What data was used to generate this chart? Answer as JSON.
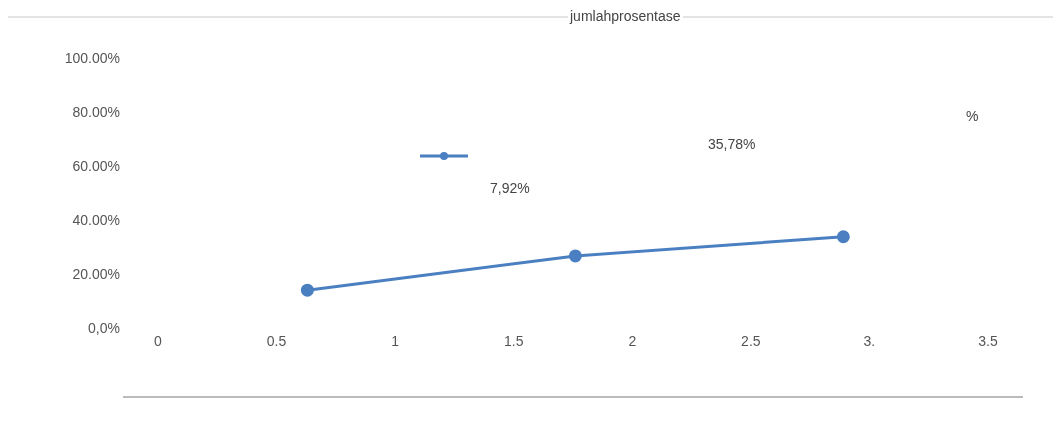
{
  "chart_data": {
    "type": "line",
    "title": "jumlahprosentase",
    "x": [
      0.63,
      1.76,
      2.89
    ],
    "series": [
      {
        "color": "#4a7fc1",
        "values": [
          14,
          26.7,
          33.8
        ]
      }
    ],
    "xlim": [
      0,
      3.5
    ],
    "xticks": [
      0,
      0.5,
      1,
      1.5,
      2,
      2.5,
      {
        "value": 3,
        "label": "3."
      },
      3.5
    ],
    "ylim": [
      0,
      100
    ],
    "yticks": [
      {
        "value": 0,
        "label": "0,0%"
      },
      {
        "value": 20,
        "label": "20.00%"
      },
      {
        "value": 40,
        "label": "40.00%"
      },
      {
        "value": 60,
        "label": "60.00%"
      },
      {
        "value": 80,
        "label": "80.00%"
      },
      {
        "value": 100,
        "label": "100.00%"
      }
    ],
    "annotations": [
      "7,92%",
      "35,78%",
      "%"
    ],
    "grid": false,
    "marker": "circle",
    "line_style": "solid"
  }
}
